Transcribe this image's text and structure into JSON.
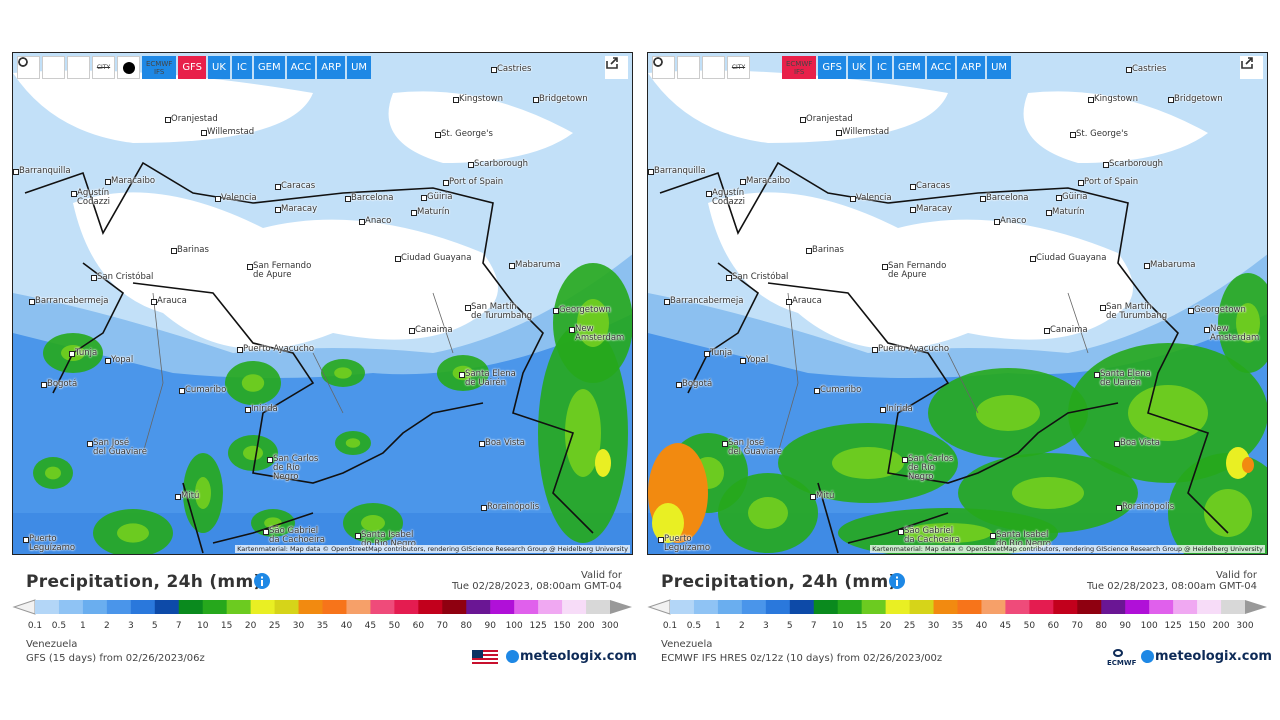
{
  "cities": [
    "Castries",
    "Kingstown",
    "Bridgetown",
    "Oranjestad",
    "Willemstad",
    "St. George's",
    "Scarborough",
    "Barranquilla",
    "Maracaibo",
    "Port of Spain",
    "Caracas",
    "Valencia",
    "Barcelona",
    "Güiria",
    "Agustín\nCodazzi",
    "Maracay",
    "Maturín",
    "Anaco",
    "Barinas",
    "San Cristóbal",
    "Ciudad Guayana",
    "Mabaruma",
    "San Fernando\nde Apure",
    "Barrancabermeja",
    "Arauca",
    "San Martín\nde Turumbang",
    "Georgetown",
    "New Amsterdam",
    "Canaima",
    "Puerto Ayacucho",
    "Tunja",
    "Yopal",
    "Bogotá",
    "Santa Elena\nde Uairén",
    "Cumaribo",
    "Inírida",
    "Boa Vista",
    "San José\ndel Guaviare",
    "San Carlos\nde Río\nNegro",
    "Mitú",
    "Rorainópolis",
    "São Gabriel\nda Cachoeira",
    "Santa Isabel\ndo Rio Negro",
    "Puerto\nLeguízamo"
  ],
  "legend_ticks": [
    "0.1",
    "0.5",
    "1",
    "2",
    "3",
    "5",
    "7",
    "10",
    "15",
    "20",
    "25",
    "30",
    "35",
    "40",
    "45",
    "50",
    "60",
    "70",
    "80",
    "90",
    "100",
    "125",
    "150",
    "200",
    "300"
  ],
  "legend_colors": [
    "#b3d6f7",
    "#8fc3f4",
    "#6aaeef",
    "#4a95ea",
    "#2a78dc",
    "#0d4aa8",
    "#0a8a1e",
    "#26a81c",
    "#6ccb20",
    "#e9ef23",
    "#d6d419",
    "#f28a10",
    "#f7741a",
    "#f6a069",
    "#ef4b7a",
    "#e41c50",
    "#c2001c",
    "#8f0010",
    "#6a1694",
    "#b010d8",
    "#e060ec",
    "#f0a8f2",
    "#f7dcf8",
    "#d8d8d8"
  ],
  "panels": [
    {
      "city_toggle": "CITY",
      "toolbar": [
        {
          "label": "ECMWF\nIFS",
          "active": false
        },
        {
          "label": "GFS",
          "active": true
        },
        {
          "label": "UK",
          "active": false
        },
        {
          "label": "IC",
          "active": false
        },
        {
          "label": "GEM",
          "active": false
        },
        {
          "label": "ACC",
          "active": false
        },
        {
          "label": "ARP",
          "active": false
        },
        {
          "label": "UM",
          "active": false
        }
      ],
      "attribution": "Kartenmaterial: Map data © OpenStreetMap contributors, rendering GIScience Research Group @ Heidelberg University",
      "title": "Precipitation, 24h (mm)",
      "valid_label": "Valid for",
      "valid_time": "Tue 02/28/2023, 08:00am GMT-04",
      "region": "Venezuela",
      "model_line": "GFS (15 days) from 02/26/2023/06z",
      "brand": "meteologix.com"
    },
    {
      "city_toggle": "CITY",
      "toolbar": [
        {
          "label": "ECMWF\nIFS",
          "active": true
        },
        {
          "label": "GFS",
          "active": false
        },
        {
          "label": "UK",
          "active": false
        },
        {
          "label": "IC",
          "active": false
        },
        {
          "label": "GEM",
          "active": false
        },
        {
          "label": "ACC",
          "active": false
        },
        {
          "label": "ARP",
          "active": false
        },
        {
          "label": "UM",
          "active": false
        }
      ],
      "attribution": "Kartenmaterial: Map data © OpenStreetMap contributors, rendering GIScience Research Group @ Heidelberg University",
      "title": "Precipitation, 24h (mm)",
      "valid_label": "Valid for",
      "valid_time": "Tue 02/28/2023, 08:00am GMT-04",
      "region": "Venezuela",
      "model_line": "ECMWF IFS HRES 0z/12z (10 days) from 02/26/2023/00z",
      "brand": "meteologix.com",
      "provider_logo": "ECMWF"
    }
  ]
}
